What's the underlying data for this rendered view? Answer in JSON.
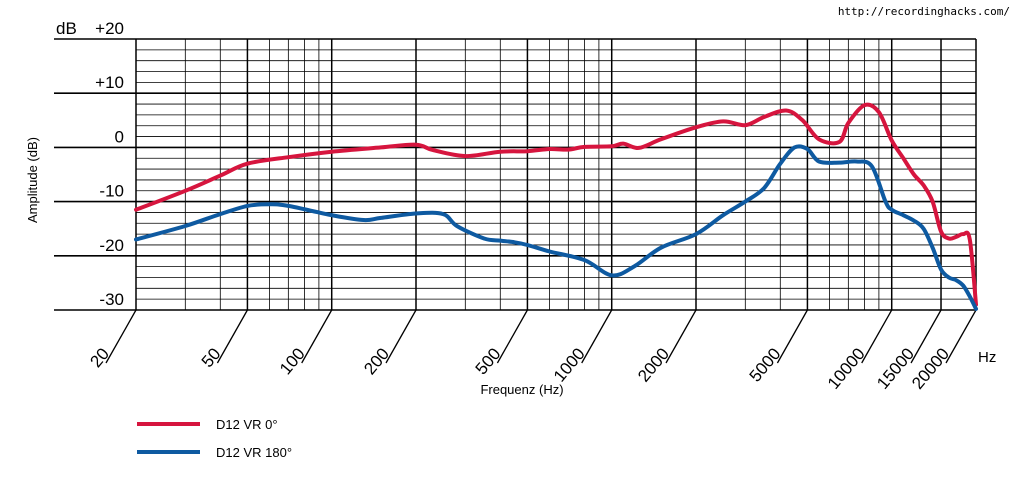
{
  "source_url": "http://recordinghacks.com/",
  "chart_data": {
    "type": "line",
    "title": "",
    "xlabel": "Frequenz (Hz)",
    "ylabel": "Amplitude (dB)",
    "y_unit_label": "dB",
    "x_unit_label": "Hz",
    "x_scale": "log",
    "xlim": [
      20,
      20000
    ],
    "ylim": [
      -30,
      20
    ],
    "x_ticks": [
      20,
      50,
      100,
      200,
      500,
      1000,
      2000,
      5000,
      10000,
      15000,
      20000
    ],
    "x_tick_labels": [
      "20",
      "50",
      "100",
      "200",
      "500",
      "1000",
      "2000",
      "5000",
      "10000",
      "15000",
      "20000"
    ],
    "y_ticks": [
      20,
      10,
      0,
      -10,
      -20,
      -30
    ],
    "y_tick_labels": [
      "+20",
      "+10",
      "0",
      "-10",
      "-20",
      "-30"
    ],
    "grid": true,
    "legend_position": "bottom-left",
    "series": [
      {
        "name": "D12 VR 0°",
        "color": "#d6153e",
        "x": [
          20,
          30,
          40,
          50,
          70,
          100,
          150,
          200,
          230,
          300,
          400,
          500,
          600,
          700,
          800,
          1000,
          1100,
          1250,
          1500,
          2000,
          2500,
          3000,
          3500,
          4200,
          4800,
          5500,
          6500,
          7000,
          8000,
          9000,
          10000,
          11000,
          12000,
          13000,
          14000,
          15000,
          16000,
          17000,
          18000,
          19000,
          20000
        ],
        "y": [
          -11.5,
          -8,
          -5.2,
          -3,
          -1.8,
          -0.8,
          0,
          0.5,
          -0.5,
          -1.6,
          -0.8,
          -0.7,
          -0.3,
          -0.4,
          0.1,
          0.2,
          0.7,
          -0.1,
          1.5,
          3.7,
          4.8,
          4.1,
          5.6,
          6.8,
          5,
          1.5,
          1,
          4.5,
          7.8,
          6.5,
          1.3,
          -2,
          -5,
          -7,
          -10,
          -15.5,
          -16.8,
          -16.5,
          -16,
          -17,
          -29
        ]
      },
      {
        "name": "D12 VR 180°",
        "color": "#0e5aa1",
        "x": [
          20,
          30,
          40,
          50,
          60,
          70,
          100,
          130,
          150,
          200,
          250,
          280,
          350,
          400,
          450,
          500,
          600,
          800,
          1000,
          1200,
          1500,
          2000,
          2500,
          3000,
          3500,
          4000,
          4500,
          5000,
          5500,
          6500,
          7500,
          8500,
          9500,
          10000,
          11000,
          12000,
          13000,
          14000,
          15000,
          16000,
          17000,
          18000,
          19000,
          20000
        ],
        "y": [
          -17,
          -14.5,
          -12.3,
          -10.8,
          -10.5,
          -10.8,
          -12.5,
          -13.4,
          -13,
          -12.2,
          -12.3,
          -14.5,
          -16.8,
          -17.2,
          -17.5,
          -18,
          -19.2,
          -20.8,
          -23.6,
          -22,
          -18.5,
          -16,
          -12.5,
          -10,
          -7.5,
          -3,
          0,
          -0.3,
          -2.6,
          -2.8,
          -2.6,
          -3.5,
          -10,
          -11.5,
          -12.5,
          -13.5,
          -15,
          -18.5,
          -22.5,
          -24,
          -24.5,
          -25.5,
          -27.5,
          -29.8
        ]
      }
    ]
  }
}
